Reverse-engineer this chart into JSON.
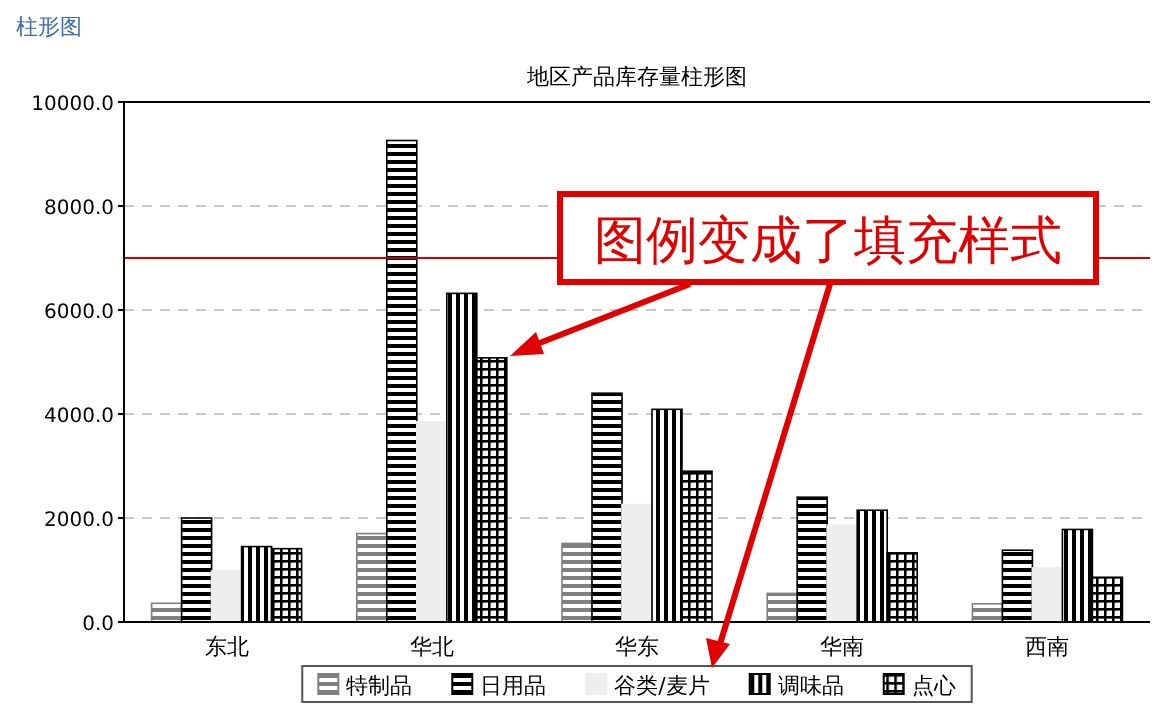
{
  "chart_data": {
    "type": "bar",
    "title": "地区产品库存量柱形图",
    "categories": [
      "东北",
      "华北",
      "华东",
      "华南",
      "西南"
    ],
    "series": [
      {
        "name": "特制品",
        "color": "#808080",
        "values": [
          360,
          1700,
          1510,
          550,
          350
        ]
      },
      {
        "name": "日用品",
        "color": "#000000",
        "values": [
          2000,
          9260,
          4400,
          2400,
          1380
        ]
      },
      {
        "name": "谷类/麦片",
        "color": "#eeeeee",
        "values": [
          980,
          3850,
          2260,
          1860,
          1040
        ]
      },
      {
        "name": "调味品",
        "color": "#000000",
        "values": [
          1450,
          6320,
          4090,
          2150,
          1780
        ]
      },
      {
        "name": "点心",
        "color": "#000000",
        "values": [
          1410,
          5080,
          2900,
          1330,
          860
        ]
      }
    ],
    "ylim": [
      0,
      10000
    ],
    "yticks": [
      {
        "value": 0,
        "label": "0.0"
      },
      {
        "value": 2000,
        "label": "2000.0"
      },
      {
        "value": 4000,
        "label": "4000.0"
      },
      {
        "value": 6000,
        "label": "6000.0"
      },
      {
        "value": 8000,
        "label": "8000.0"
      },
      {
        "value": 10000,
        "label": "10000.0"
      }
    ],
    "grid": "y",
    "legend": "bottom",
    "ref_lines": [
      {
        "axis": "y",
        "value": 7000,
        "color": "#cc0000"
      }
    ],
    "annotations": [
      "柱形图",
      "图例变成了填充样式"
    ]
  }
}
